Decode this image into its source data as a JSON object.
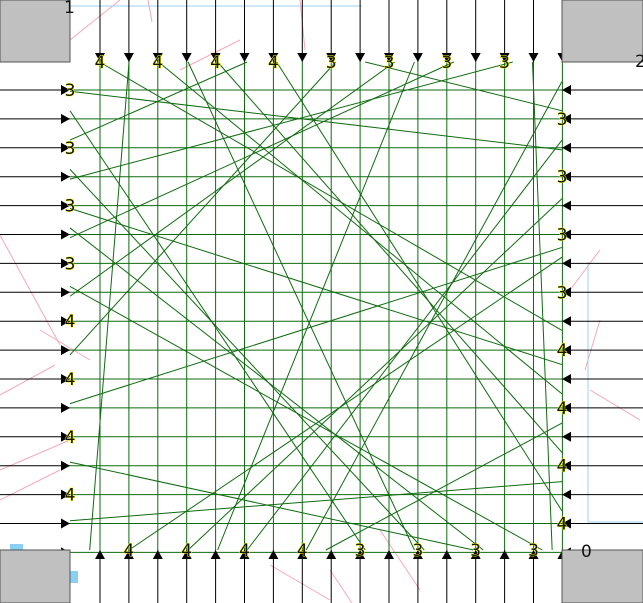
{
  "corner_labels": {
    "top_left": "1",
    "top_right": "2",
    "bottom_right": "0"
  },
  "pin_labels": {
    "top": [
      "4",
      "4",
      "4",
      "4",
      "3",
      "3",
      "3",
      "3"
    ],
    "bottom": [
      "4",
      "4",
      "4",
      "4",
      "3",
      "3",
      "3",
      "3"
    ],
    "left": [
      "3",
      "3",
      "3",
      "3",
      "4",
      "4",
      "4",
      "4"
    ],
    "right": [
      "3",
      "3",
      "3",
      "3",
      "4",
      "4",
      "4",
      "4"
    ]
  },
  "colors": {
    "wire": "#0f6b0f",
    "arrow": "#000000",
    "pad": "#c0c0c0",
    "marker": "#8ccff5",
    "rat": "#f4a8b8",
    "guide": "#9fd0f0"
  }
}
